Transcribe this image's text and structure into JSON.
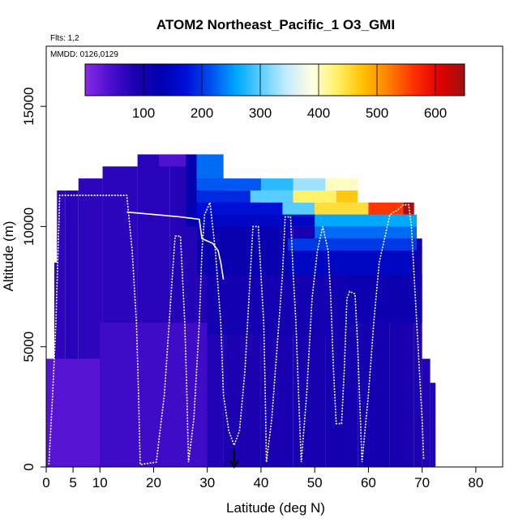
{
  "chart_data": {
    "type": "heatmap",
    "title": "ATOM2 Northeast_Pacific_1 O3_GMI",
    "annotations": [
      "Flts: 1,2",
      "MMDD: 0126,0129"
    ],
    "xlabel": "Latitude (deg N)",
    "ylabel": "Altitude (m)",
    "xlim": [
      0,
      85
    ],
    "ylim": [
      0,
      17500
    ],
    "x_ticks": [
      0,
      5,
      10,
      20,
      30,
      40,
      50,
      60,
      70,
      80
    ],
    "y_ticks": [
      0,
      5000,
      10000,
      15000
    ],
    "colorbar": {
      "ticks": [
        100,
        200,
        300,
        400,
        500,
        600
      ],
      "range": [
        0,
        650
      ],
      "colors": [
        "#8a2be2",
        "#4b0fd0",
        "#1a00b0",
        "#0000b0",
        "#0010d8",
        "#0050f0",
        "#00a8ff",
        "#60d0ff",
        "#c8ecff",
        "#ffffe0",
        "#fff060",
        "#ffc000",
        "#ff8000",
        "#ff3000",
        "#e00000",
        "#a01010"
      ]
    },
    "marker": {
      "x": 35,
      "label": "down-arrow"
    },
    "columns": [
      {
        "x0": 0.0,
        "x1": 1.5,
        "top": 500,
        "v": 60
      },
      {
        "x0": 0.5,
        "x1": 1.5,
        "top": 3000,
        "v": 75
      },
      {
        "x0": 1.5,
        "x1": 2.5,
        "top": 8500,
        "v": 70
      },
      {
        "x0": 2.0,
        "x1": 3.5,
        "top": 11500,
        "v": 70
      },
      {
        "x0": 3.5,
        "x1": 6.0,
        "top": 11500,
        "v": 75
      },
      {
        "x0": 6.0,
        "x1": 10.5,
        "top": 12000,
        "v": 70
      },
      {
        "x0": 10.5,
        "x1": 17.0,
        "top": 12500,
        "v": 72
      },
      {
        "x0": 17.0,
        "x1": 23.0,
        "top": 13000,
        "v": 75
      },
      {
        "x0": 23.0,
        "x1": 28.0,
        "top": 13000,
        "v": 78
      },
      {
        "x0": 28.0,
        "x1": 33.0,
        "top": 13000,
        "v": 80
      },
      {
        "x0": 33.0,
        "x1": 40.0,
        "top": 11500,
        "v": 85
      },
      {
        "x0": 40.0,
        "x1": 46.0,
        "top": 11000,
        "v": 90
      },
      {
        "x0": 46.0,
        "x1": 52.0,
        "top": 10500,
        "v": 92
      },
      {
        "x0": 52.0,
        "x1": 58.0,
        "top": 10500,
        "v": 95
      },
      {
        "x0": 58.0,
        "x1": 64.0,
        "top": 10500,
        "v": 95
      },
      {
        "x0": 64.0,
        "x1": 68.5,
        "top": 10000,
        "v": 90
      },
      {
        "x0": 68.5,
        "x1": 70.0,
        "top": 8000,
        "v": 85
      },
      {
        "x0": 70.0,
        "x1": 71.5,
        "top": 4500,
        "v": 80
      },
      {
        "x0": 71.5,
        "x1": 72.5,
        "top": 3500,
        "v": 80
      }
    ],
    "patches": [
      {
        "x0": 0.0,
        "x1": 10.0,
        "y0": 0,
        "y1": 4500,
        "v": 35
      },
      {
        "x0": 10.0,
        "x1": 30.0,
        "y0": 0,
        "y1": 6000,
        "v": 55
      },
      {
        "x0": 30.0,
        "x1": 55.0,
        "y0": 5500,
        "y1": 9500,
        "v": 100
      },
      {
        "x0": 55.0,
        "x1": 70.0,
        "y0": 6000,
        "y1": 9500,
        "v": 110
      },
      {
        "x0": 28.0,
        "x1": 45.0,
        "y0": 8000,
        "y1": 10000,
        "v": 115
      },
      {
        "x0": 45.0,
        "x1": 68.0,
        "y0": 8000,
        "y1": 9000,
        "v": 150
      },
      {
        "x0": 45.0,
        "x1": 69.0,
        "y0": 9000,
        "y1": 9500,
        "v": 200
      },
      {
        "x0": 50.0,
        "x1": 69.0,
        "y0": 9500,
        "y1": 10000,
        "v": 230
      },
      {
        "x0": 44.0,
        "x1": 69.0,
        "y0": 10000,
        "y1": 10500,
        "v": 260
      },
      {
        "x0": 28.0,
        "x1": 50.0,
        "y0": 10000,
        "y1": 10500,
        "v": 150
      },
      {
        "x0": 28.0,
        "x1": 44.0,
        "y0": 10500,
        "y1": 11000,
        "v": 170
      },
      {
        "x0": 44.0,
        "x1": 50.0,
        "y0": 10500,
        "y1": 11000,
        "v": 300
      },
      {
        "x0": 50.0,
        "x1": 60.0,
        "y0": 10500,
        "y1": 11000,
        "v": 450
      },
      {
        "x0": 60.0,
        "x1": 66.5,
        "y0": 10500,
        "y1": 11000,
        "v": 560
      },
      {
        "x0": 66.5,
        "x1": 68.5,
        "y0": 10500,
        "y1": 11000,
        "v": 640
      },
      {
        "x0": 28.0,
        "x1": 38.0,
        "y0": 11000,
        "y1": 11500,
        "v": 190
      },
      {
        "x0": 38.0,
        "x1": 46.0,
        "y0": 11000,
        "y1": 11500,
        "v": 300
      },
      {
        "x0": 46.0,
        "x1": 54.0,
        "y0": 11000,
        "y1": 11500,
        "v": 430
      },
      {
        "x0": 54.0,
        "x1": 58.0,
        "y0": 11000,
        "y1": 11500,
        "v": 470
      },
      {
        "x0": 28.0,
        "x1": 40.0,
        "y0": 11500,
        "y1": 12000,
        "v": 220
      },
      {
        "x0": 40.0,
        "x1": 46.0,
        "y0": 11500,
        "y1": 12000,
        "v": 280
      },
      {
        "x0": 46.0,
        "x1": 52.0,
        "y0": 11500,
        "y1": 12000,
        "v": 330
      },
      {
        "x0": 52.0,
        "x1": 58.0,
        "y0": 11500,
        "y1": 12000,
        "v": 400
      },
      {
        "x0": 28.0,
        "x1": 33.0,
        "y0": 12000,
        "y1": 13000,
        "v": 230
      },
      {
        "x0": 26.0,
        "x1": 28.0,
        "y0": 10000,
        "y1": 13000,
        "v": 120
      },
      {
        "x0": 21.0,
        "x1": 26.0,
        "y0": 12500,
        "y1": 13000,
        "v": 40
      }
    ],
    "flight_path": [
      [
        0.5,
        100
      ],
      [
        1.2,
        3000
      ],
      [
        1.8,
        6000
      ],
      [
        2.2,
        9000
      ],
      [
        2.5,
        11300
      ],
      [
        6.0,
        11300
      ],
      [
        15.0,
        11300
      ],
      [
        16.0,
        9000
      ],
      [
        16.8,
        6000
      ],
      [
        17.2,
        3000
      ],
      [
        17.5,
        100
      ],
      [
        20.5,
        200
      ],
      [
        22.0,
        3000
      ],
      [
        23.5,
        8000
      ],
      [
        24.0,
        9600
      ],
      [
        25.0,
        9600
      ],
      [
        25.8,
        6000
      ],
      [
        26.2,
        3000
      ],
      [
        26.5,
        200
      ],
      [
        27.5,
        2000
      ],
      [
        28.5,
        6000
      ],
      [
        29.0,
        9000
      ],
      [
        29.5,
        10500
      ],
      [
        30.5,
        11000
      ],
      [
        31.5,
        9000
      ],
      [
        32.5,
        6000
      ],
      [
        33.0,
        3000
      ],
      [
        34.0,
        1500
      ],
      [
        35.0,
        900
      ],
      [
        36.0,
        1500
      ],
      [
        37.0,
        4000
      ],
      [
        38.0,
        8000
      ],
      [
        38.5,
        10000
      ],
      [
        39.5,
        10000
      ],
      [
        40.0,
        8000
      ],
      [
        40.5,
        6000
      ],
      [
        40.8,
        3000
      ],
      [
        41.0,
        200
      ],
      [
        42.0,
        2000
      ],
      [
        43.0,
        5000
      ],
      [
        44.0,
        8000
      ],
      [
        44.5,
        10400
      ],
      [
        45.5,
        10400
      ],
      [
        46.0,
        8000
      ],
      [
        46.5,
        6000
      ],
      [
        47.0,
        3000
      ],
      [
        47.5,
        200
      ],
      [
        48.5,
        3000
      ],
      [
        49.5,
        7000
      ],
      [
        50.5,
        9000
      ],
      [
        51.5,
        10000
      ],
      [
        52.5,
        9000
      ],
      [
        53.0,
        7000
      ],
      [
        53.5,
        4000
      ],
      [
        54.0,
        1800
      ],
      [
        55.0,
        1800
      ],
      [
        55.5,
        4000
      ],
      [
        56.0,
        7000
      ],
      [
        56.5,
        7300
      ],
      [
        57.5,
        7200
      ],
      [
        58.0,
        5000
      ],
      [
        58.5,
        2000
      ],
      [
        58.8,
        200
      ],
      [
        60.0,
        3000
      ],
      [
        61.0,
        6000
      ],
      [
        62.0,
        8500
      ],
      [
        63.0,
        9500
      ],
      [
        64.0,
        10500
      ],
      [
        65.5,
        10700
      ],
      [
        66.5,
        10900
      ],
      [
        67.5,
        10900
      ],
      [
        68.0,
        10000
      ],
      [
        68.5,
        8000
      ],
      [
        69.0,
        6000
      ],
      [
        69.5,
        4000
      ],
      [
        70.0,
        2000
      ],
      [
        70.3,
        300
      ]
    ],
    "level_track": [
      [
        15.0,
        10600
      ],
      [
        20.0,
        10500
      ],
      [
        25.0,
        10400
      ],
      [
        28.5,
        10300
      ],
      [
        29.0,
        9500
      ],
      [
        31.0,
        9300
      ],
      [
        32.0,
        9000
      ],
      [
        32.5,
        8500
      ],
      [
        33.0,
        7800
      ]
    ]
  }
}
